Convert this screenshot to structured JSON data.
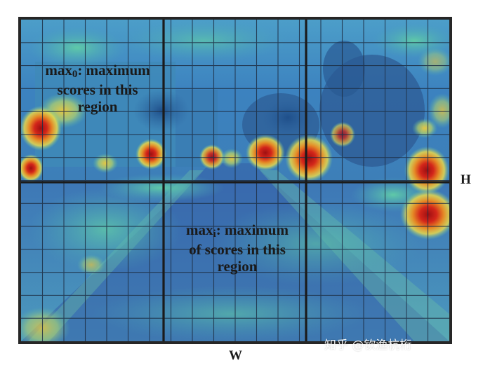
{
  "figure": {
    "axis_h": "H",
    "axis_w": "W",
    "top_region_label": {
      "prefix": "max",
      "sub": "0",
      "lines": [
        ": maximum",
        "scores in this",
        "region"
      ]
    },
    "bottom_region_label": {
      "prefix": "max",
      "sub": "i",
      "lines": [
        ": maximum",
        "of scores in this",
        "region"
      ]
    },
    "watermark": "知乎 @钦渔杭桁"
  },
  "colors": {
    "frame": "#262626",
    "fine_grid": "#1e2f45",
    "coarse_grid": "#1b1b1b",
    "heat_low": "#3f7fc0",
    "heat_mid": "#4fb7b0",
    "heat_high": "#e9d84a",
    "heat_peak": "#c41b1b"
  }
}
